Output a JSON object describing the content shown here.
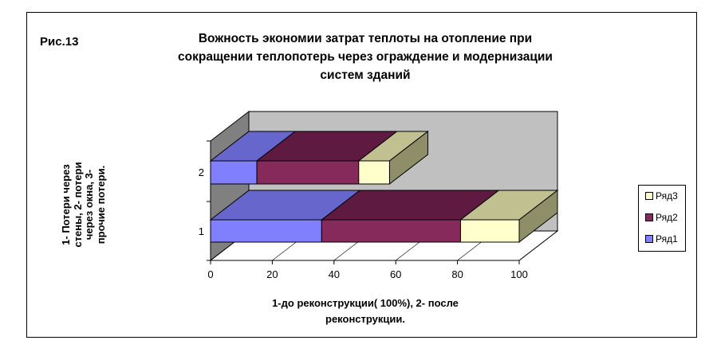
{
  "figure_label": "Рис.13",
  "footnote": "",
  "chart_data": {
    "type": "bar",
    "orientation": "horizontal",
    "stacked": true,
    "three_d": true,
    "title": "Вожность экономии затрат  теплоты на отопление  при\nсокращении теплопотерь через ограждение и модернизации\nсистем зданий",
    "xlabel": "1-до реконструкции(  100%), 2- после\nреконструкции.",
    "ylabel": "1- Потери через\nстены, 2- потери\nчерез окна, 3-\nпрочие потери.",
    "categories": [
      "1",
      "2"
    ],
    "x_ticks": [
      "0",
      "20",
      "40",
      "60",
      "80",
      "100"
    ],
    "xlim": [
      0,
      100
    ],
    "legend_position": "right",
    "series": [
      {
        "name": "Ряд1",
        "values": [
          36,
          15
        ],
        "color": "#8080ff",
        "top_color": "#6666cc",
        "side_color": "#5858b0"
      },
      {
        "name": "Ряд2",
        "values": [
          45,
          33
        ],
        "color": "#862a5c",
        "top_color": "#5e1a40",
        "side_color": "#4e1436"
      },
      {
        "name": "Ряд3",
        "values": [
          19,
          10
        ],
        "color": "#ffffcc",
        "top_color": "#c0c090",
        "side_color": "#8e8e68"
      }
    ]
  }
}
